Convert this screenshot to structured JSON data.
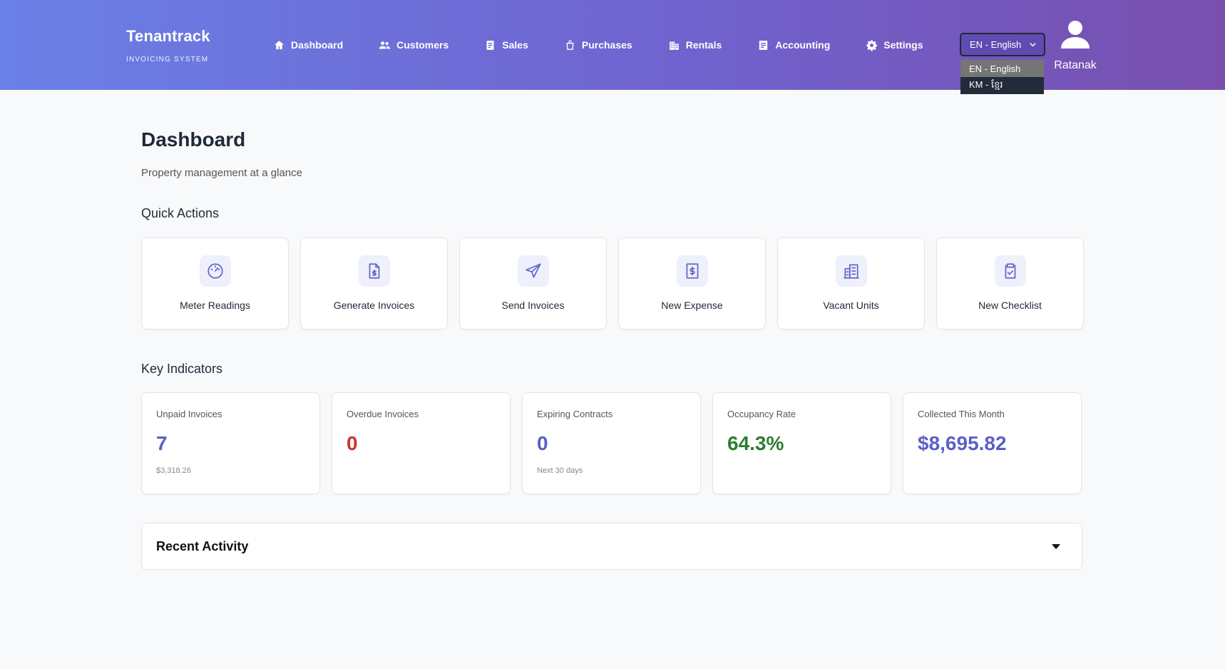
{
  "brand": {
    "title": "Tenantrack",
    "subtitle": "INVOICING SYSTEM"
  },
  "nav": [
    {
      "label": "Dashboard",
      "icon": "home-icon"
    },
    {
      "label": "Customers",
      "icon": "users-icon"
    },
    {
      "label": "Sales",
      "icon": "document-icon"
    },
    {
      "label": "Purchases",
      "icon": "shopping-bag-icon"
    },
    {
      "label": "Rentals",
      "icon": "building-icon"
    },
    {
      "label": "Accounting",
      "icon": "ledger-icon"
    },
    {
      "label": "Settings",
      "icon": "gear-icon"
    }
  ],
  "language": {
    "selected": "EN - English",
    "options": [
      "EN - English",
      "KM - ខ្មែរ"
    ]
  },
  "user": {
    "name": "Ratanak",
    "icon": "user-icon"
  },
  "page": {
    "title": "Dashboard",
    "subtitle": "Property management at a glance"
  },
  "quick_actions": {
    "title": "Quick Actions",
    "items": [
      {
        "label": "Meter Readings",
        "icon": "gauge-icon"
      },
      {
        "label": "Generate Invoices",
        "icon": "file-invoice-icon"
      },
      {
        "label": "Send Invoices",
        "icon": "send-icon"
      },
      {
        "label": "New Expense",
        "icon": "receipt-dollar-icon"
      },
      {
        "label": "Vacant Units",
        "icon": "buildings-icon"
      },
      {
        "label": "New Checklist",
        "icon": "clipboard-check-icon"
      }
    ]
  },
  "key_indicators": {
    "title": "Key Indicators",
    "items": [
      {
        "label": "Unpaid Invoices",
        "value": "7",
        "sub": "$3,318.26",
        "color": "#5b5fc7"
      },
      {
        "label": "Overdue Invoices",
        "value": "0",
        "sub": "",
        "color": "#d32f2f"
      },
      {
        "label": "Expiring Contracts",
        "value": "0",
        "sub": "Next 30 days",
        "color": "#5b5fc7"
      },
      {
        "label": "Occupancy Rate",
        "value": "64.3%",
        "sub": "",
        "color": "#2e7d32"
      },
      {
        "label": "Collected This Month",
        "value": "$8,695.82",
        "sub": "",
        "color": "#5b5fc7"
      }
    ]
  },
  "recent_activity": {
    "title": "Recent Activity",
    "icon": "caret-down-icon"
  }
}
